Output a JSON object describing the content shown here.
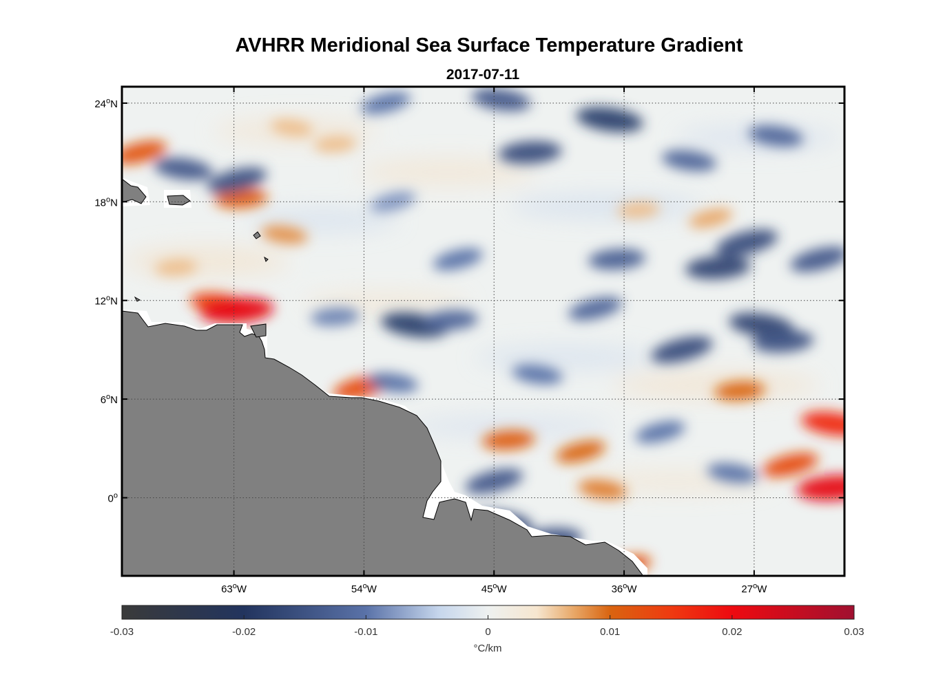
{
  "title": "AVHRR Meridional Sea Surface Temperature Gradient",
  "subtitle": "2017-07-11",
  "map": {
    "lon_range": [
      -70.75,
      -20.75
    ],
    "lat_range": [
      -4.75,
      25
    ],
    "lon_ticks": [
      {
        "value": -63,
        "deg": "63",
        "hemi": "W"
      },
      {
        "value": -54,
        "deg": "54",
        "hemi": "W"
      },
      {
        "value": -45,
        "deg": "45",
        "hemi": "W"
      },
      {
        "value": -36,
        "deg": "36",
        "hemi": "W"
      },
      {
        "value": -27,
        "deg": "27",
        "hemi": "W"
      }
    ],
    "lat_ticks": [
      {
        "value": 24,
        "deg": "24",
        "hemi": "N"
      },
      {
        "value": 18,
        "deg": "18",
        "hemi": "N"
      },
      {
        "value": 12,
        "deg": "12",
        "hemi": "N"
      },
      {
        "value": 6,
        "deg": "6",
        "hemi": "N"
      },
      {
        "value": 0,
        "deg": "0",
        "hemi": ""
      }
    ],
    "land_color": "#808080",
    "degree_symbol": "o"
  },
  "colorbar": {
    "min": -0.03,
    "max": 0.03,
    "ticks": [
      {
        "value": -0.03,
        "label": "-0.03"
      },
      {
        "value": -0.02,
        "label": "-0.02"
      },
      {
        "value": -0.01,
        "label": "-0.01"
      },
      {
        "value": 0,
        "label": "0"
      },
      {
        "value": 0.01,
        "label": "0.01"
      },
      {
        "value": 0.02,
        "label": "0.02"
      },
      {
        "value": 0.03,
        "label": "0.03"
      }
    ],
    "label": "°C/km",
    "stops": [
      {
        "value": -0.03,
        "color": "#3a3a3a"
      },
      {
        "value": -0.02,
        "color": "#22345e"
      },
      {
        "value": -0.01,
        "color": "#5a72a8"
      },
      {
        "value": -0.004,
        "color": "#c6d6ec"
      },
      {
        "value": 0,
        "color": "#eef1f0"
      },
      {
        "value": 0.004,
        "color": "#f6e6cf"
      },
      {
        "value": 0.007,
        "color": "#e8a868"
      },
      {
        "value": 0.01,
        "color": "#d96410"
      },
      {
        "value": 0.015,
        "color": "#ef3a10"
      },
      {
        "value": 0.02,
        "color": "#ee0a10"
      },
      {
        "value": 0.03,
        "color": "#a01030"
      }
    ]
  },
  "field_features": [
    {
      "lon": -69.5,
      "lat": 21.0,
      "value": 0.012
    },
    {
      "lon": -66.5,
      "lat": 20.0,
      "value": -0.014
    },
    {
      "lon": -62.5,
      "lat": 18.2,
      "value": 0.011
    },
    {
      "lon": -62.8,
      "lat": 19.3,
      "value": -0.015
    },
    {
      "lon": -64.0,
      "lat": 11.8,
      "value": 0.014
    },
    {
      "lon": -62.8,
      "lat": 11.4,
      "value": 0.021
    },
    {
      "lon": -54.2,
      "lat": 6.7,
      "value": 0.013
    },
    {
      "lon": -50.5,
      "lat": 10.5,
      "value": -0.018
    },
    {
      "lon": -48.0,
      "lat": 10.8,
      "value": -0.012
    },
    {
      "lon": -47.5,
      "lat": 14.5,
      "value": -0.01
    },
    {
      "lon": -44.5,
      "lat": 24.2,
      "value": -0.014
    },
    {
      "lon": -42.5,
      "lat": 21.0,
      "value": -0.016
    },
    {
      "lon": -38.0,
      "lat": 11.5,
      "value": -0.012
    },
    {
      "lon": -37.0,
      "lat": 23.0,
      "value": -0.018
    },
    {
      "lon": -36.5,
      "lat": 14.5,
      "value": -0.013
    },
    {
      "lon": -32.0,
      "lat": 9.0,
      "value": -0.016
    },
    {
      "lon": -31.5,
      "lat": 20.5,
      "value": -0.012
    },
    {
      "lon": -29.5,
      "lat": 14.0,
      "value": -0.017
    },
    {
      "lon": -27.5,
      "lat": 15.5,
      "value": -0.016
    },
    {
      "lon": -26.5,
      "lat": 10.5,
      "value": -0.017
    },
    {
      "lon": -25.0,
      "lat": 9.5,
      "value": -0.015
    },
    {
      "lon": -22.5,
      "lat": 14.5,
      "value": -0.014
    },
    {
      "lon": -25.5,
      "lat": 22.0,
      "value": -0.012
    },
    {
      "lon": -44.0,
      "lat": 3.5,
      "value": 0.011
    },
    {
      "lon": -39.0,
      "lat": 2.8,
      "value": 0.01
    },
    {
      "lon": -37.5,
      "lat": 0.5,
      "value": 0.009
    },
    {
      "lon": -28.0,
      "lat": 6.5,
      "value": 0.01
    },
    {
      "lon": -24.5,
      "lat": 2.0,
      "value": 0.013
    },
    {
      "lon": -21.5,
      "lat": 4.5,
      "value": 0.017
    },
    {
      "lon": -21.5,
      "lat": 0.6,
      "value": 0.021
    },
    {
      "lon": -45.0,
      "lat": 1.0,
      "value": -0.014
    },
    {
      "lon": -44.5,
      "lat": -1.5,
      "value": -0.016
    },
    {
      "lon": -41.0,
      "lat": -2.5,
      "value": -0.015
    },
    {
      "lon": -36.0,
      "lat": -4.2,
      "value": 0.012
    },
    {
      "lon": -52.0,
      "lat": 7.0,
      "value": -0.01
    },
    {
      "lon": -56.0,
      "lat": 11.0,
      "value": -0.009
    },
    {
      "lon": -52.0,
      "lat": 18.0,
      "value": -0.008
    },
    {
      "lon": -59.0,
      "lat": 22.5,
      "value": 0.006
    },
    {
      "lon": -56.0,
      "lat": 21.5,
      "value": 0.006
    },
    {
      "lon": -52.5,
      "lat": 24.0,
      "value": -0.01
    },
    {
      "lon": -42.0,
      "lat": 7.5,
      "value": -0.01
    },
    {
      "lon": -35.0,
      "lat": 17.5,
      "value": 0.006
    },
    {
      "lon": -30.0,
      "lat": 17.0,
      "value": 0.007
    },
    {
      "lon": -59.5,
      "lat": 16.0,
      "value": 0.008
    },
    {
      "lon": -67.0,
      "lat": 14.0,
      "value": 0.006
    },
    {
      "lon": -33.5,
      "lat": 4.0,
      "value": -0.01
    },
    {
      "lon": -28.5,
      "lat": 1.5,
      "value": -0.01
    }
  ]
}
